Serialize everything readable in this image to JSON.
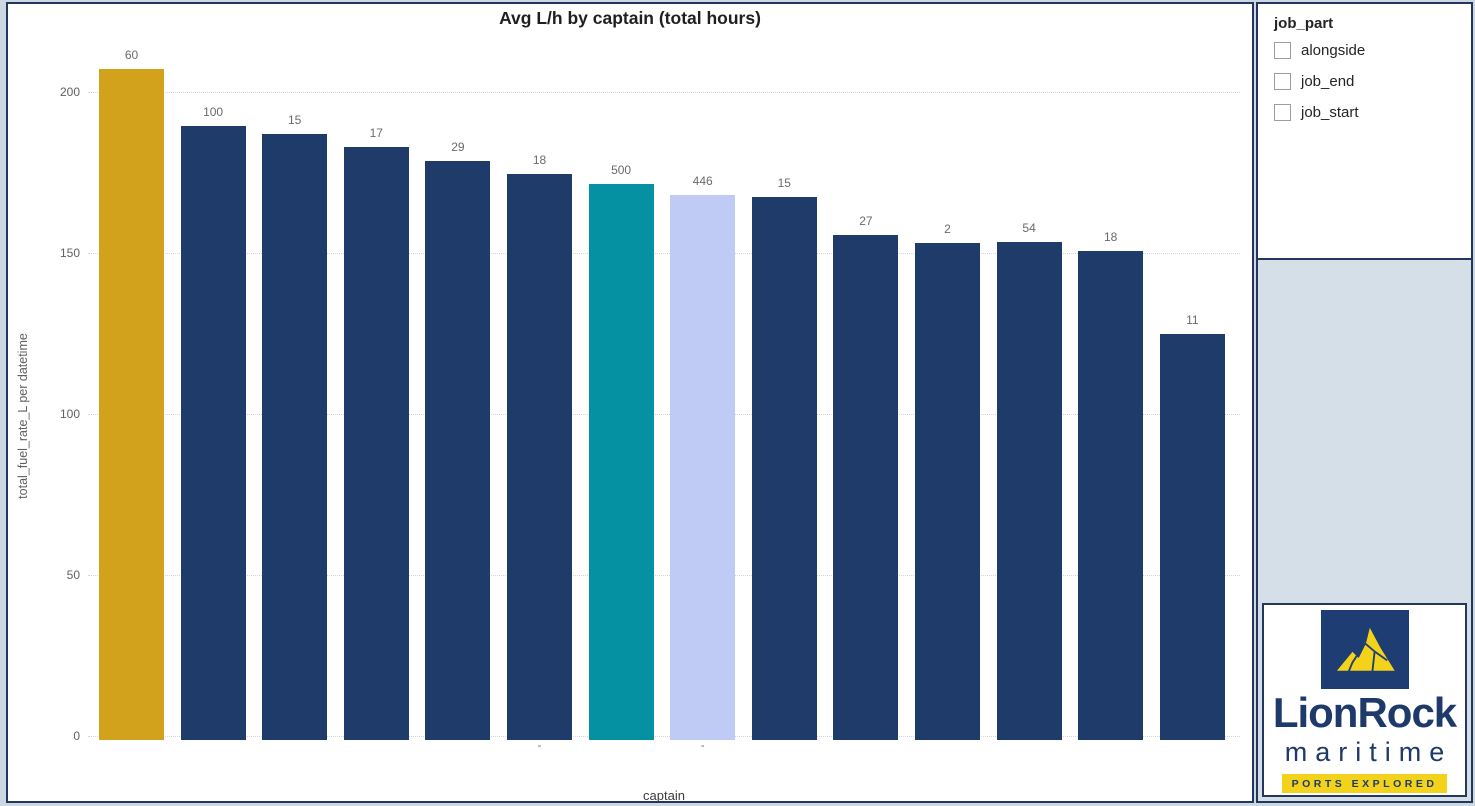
{
  "colors": {
    "gold": "#d3a21d",
    "navy": "#1f3b6a",
    "teal": "#0691a3",
    "lavender": "#bfcbf4",
    "panel_border": "#24365c",
    "page_bg": "#cbd7e2",
    "spacer_bg": "#d5dfe8",
    "logo_navy": "#1e3a6b",
    "logo_yellow": "#f2d21b"
  },
  "chart_data": {
    "type": "bar",
    "title": "Avg L/h by captain (total hours)",
    "xlabel": "captain",
    "ylabel": "total_fuel_rate_L per datetime",
    "y_ticks": [
      0,
      50,
      100,
      150,
      200
    ],
    "y_max": 200,
    "grid": "dotted horizontal",
    "legend_position": "none",
    "note": "bar height = avg fuel rate L/h; number above bar = total hours",
    "bars": [
      {
        "avg_l_per_h": 207,
        "total_hours": "60",
        "color": "gold",
        "tick": ""
      },
      {
        "avg_l_per_h": 189.5,
        "total_hours": "100",
        "color": "navy",
        "tick": ""
      },
      {
        "avg_l_per_h": 187,
        "total_hours": "15",
        "color": "navy",
        "tick": ""
      },
      {
        "avg_l_per_h": 183,
        "total_hours": "17",
        "color": "navy",
        "tick": ""
      },
      {
        "avg_l_per_h": 178.5,
        "total_hours": "29",
        "color": "navy",
        "tick": ""
      },
      {
        "avg_l_per_h": 174.5,
        "total_hours": "18",
        "color": "navy",
        "tick": "-"
      },
      {
        "avg_l_per_h": 171.5,
        "total_hours": "500",
        "color": "teal",
        "tick": ""
      },
      {
        "avg_l_per_h": 168,
        "total_hours": "446",
        "color": "lavender",
        "tick": "-"
      },
      {
        "avg_l_per_h": 167.5,
        "total_hours": "15",
        "color": "navy",
        "tick": ""
      },
      {
        "avg_l_per_h": 155.5,
        "total_hours": "27",
        "color": "navy",
        "tick": ""
      },
      {
        "avg_l_per_h": 153,
        "total_hours": "2",
        "color": "navy",
        "tick": ""
      },
      {
        "avg_l_per_h": 153.5,
        "total_hours": "54",
        "color": "navy",
        "tick": ""
      },
      {
        "avg_l_per_h": 150.5,
        "total_hours": "18",
        "color": "navy",
        "tick": ""
      },
      {
        "avg_l_per_h": 125,
        "total_hours": "11",
        "color": "navy",
        "tick": ""
      }
    ]
  },
  "slicer": {
    "title": "job_part",
    "items": [
      {
        "label": "alongside",
        "checked": false
      },
      {
        "label": "job_end",
        "checked": false
      },
      {
        "label": "job_start",
        "checked": false
      }
    ]
  },
  "logo": {
    "name": "LionRock",
    "subtitle": "maritime",
    "tagline": "PORTS EXPLORED"
  }
}
